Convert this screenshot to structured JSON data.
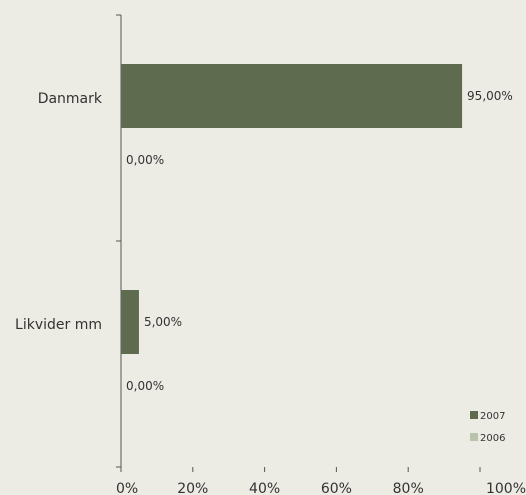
{
  "chart_data": {
    "type": "bar",
    "orientation": "horizontal",
    "categories": [
      "Danmark",
      "Likvider mm"
    ],
    "series": [
      {
        "name": "2007",
        "values": [
          95.0,
          5.0
        ],
        "labels": [
          "95,00%",
          "5,00%"
        ],
        "color": "#5f6b4e"
      },
      {
        "name": "2006",
        "values": [
          0.0,
          0.0
        ],
        "labels": [
          "0,00%",
          "0,00%"
        ],
        "color": "#b9c2ab"
      }
    ],
    "x_ticks": [
      "0%",
      "20%",
      "40%",
      "60%",
      "80%",
      "100%"
    ],
    "xlim": [
      0,
      100
    ],
    "title": "",
    "xlabel": "",
    "ylabel": "",
    "grid": false,
    "legend_position": "bottom-right",
    "axis_color": "#555555",
    "background": "#ecebe4"
  }
}
